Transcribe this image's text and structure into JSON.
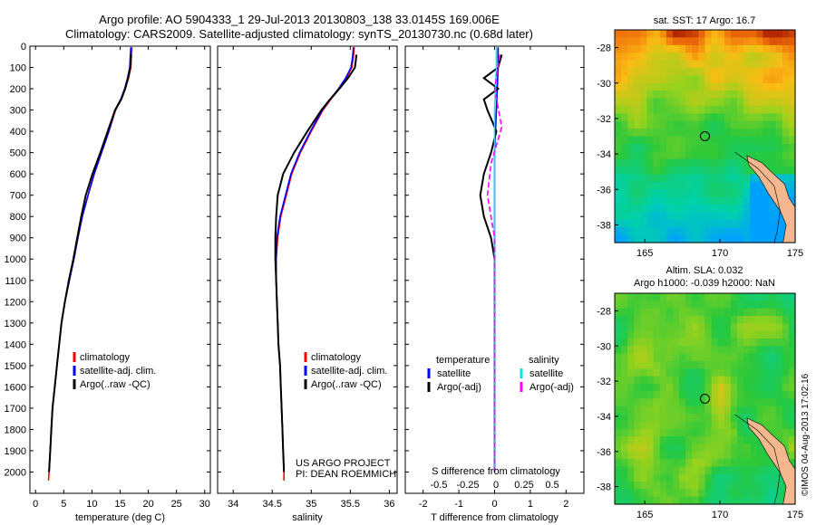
{
  "header": {
    "line1": "Argo profile: AO 5904333_1 29-Jul-2013 20130803_138 33.0145S 169.006E",
    "line2": "Climatology: CARS2009. Satellite-adjusted climatology: synTS_20130730.nc (0.68d later)"
  },
  "colors": {
    "climatology": "#ff0000",
    "satellite": "#0000ff",
    "argo": "#000000",
    "sat_salinity": "#00e5ee",
    "argo_salinity": "#ff00ff"
  },
  "chart_data": [
    {
      "type": "line",
      "id": "temperature",
      "xlabel": "temperature (deg C)",
      "ylim": [
        2100,
        0
      ],
      "xlim": [
        -1,
        31
      ],
      "xticks": [
        0,
        5,
        10,
        15,
        20,
        25,
        30
      ],
      "yticks": [
        0,
        100,
        200,
        300,
        400,
        500,
        600,
        700,
        800,
        900,
        1000,
        1100,
        1200,
        1300,
        1400,
        1500,
        1600,
        1700,
        1800,
        1900,
        2000
      ],
      "legend": [
        "climatology",
        "satellite-adj. clim.",
        "Argo(..raw -QC)"
      ],
      "series": [
        {
          "name": "climatology",
          "color": "#ff0000",
          "points": [
            [
              17.1,
              5
            ],
            [
              17.0,
              50
            ],
            [
              16.9,
              100
            ],
            [
              16.5,
              150
            ],
            [
              15.9,
              200
            ],
            [
              15.2,
              250
            ],
            [
              14.2,
              300
            ],
            [
              13.0,
              400
            ],
            [
              11.7,
              500
            ],
            [
              10.4,
              600
            ],
            [
              9.3,
              700
            ],
            [
              8.3,
              800
            ],
            [
              7.5,
              900
            ],
            [
              6.8,
              1000
            ],
            [
              6.0,
              1100
            ],
            [
              5.2,
              1200
            ],
            [
              4.6,
              1300
            ],
            [
              4.2,
              1400
            ],
            [
              3.8,
              1500
            ],
            [
              3.4,
              1600
            ],
            [
              3.0,
              1700
            ],
            [
              2.8,
              1800
            ],
            [
              2.6,
              1900
            ],
            [
              2.4,
              2000
            ],
            [
              2.3,
              2040
            ]
          ]
        },
        {
          "name": "satellite-adj. clim.",
          "color": "#0000ff",
          "points": [
            [
              16.9,
              5
            ],
            [
              16.8,
              50
            ],
            [
              16.7,
              100
            ],
            [
              16.3,
              150
            ],
            [
              15.8,
              200
            ],
            [
              15.1,
              250
            ],
            [
              14.1,
              300
            ],
            [
              13.0,
              400
            ],
            [
              11.7,
              500
            ],
            [
              10.4,
              600
            ],
            [
              9.3,
              700
            ],
            [
              8.3,
              800
            ],
            [
              7.5,
              900
            ],
            [
              6.8,
              1000
            ],
            [
              6.0,
              1100
            ],
            [
              5.2,
              1200
            ],
            [
              4.6,
              1300
            ],
            [
              4.2,
              1400
            ],
            [
              3.8,
              1500
            ],
            [
              3.4,
              1600
            ],
            [
              3.0,
              1700
            ],
            [
              2.8,
              1800
            ],
            [
              2.6,
              1900
            ],
            [
              2.4,
              2000
            ]
          ]
        },
        {
          "name": "Argo(..raw -QC)",
          "color": "#000000",
          "points": [
            [
              16.9,
              40
            ],
            [
              16.8,
              100
            ],
            [
              16.4,
              150
            ],
            [
              15.9,
              200
            ],
            [
              15.2,
              250
            ],
            [
              14.1,
              300
            ],
            [
              12.8,
              400
            ],
            [
              11.5,
              500
            ],
            [
              10.1,
              600
            ],
            [
              8.9,
              700
            ],
            [
              8.1,
              800
            ],
            [
              7.4,
              900
            ],
            [
              6.7,
              1000
            ],
            [
              5.9,
              1100
            ],
            [
              5.2,
              1200
            ],
            [
              4.6,
              1300
            ],
            [
              4.2,
              1400
            ],
            [
              3.8,
              1500
            ],
            [
              3.4,
              1600
            ],
            [
              3.0,
              1700
            ],
            [
              2.8,
              1800
            ],
            [
              2.6,
              1900
            ],
            [
              2.4,
              2000
            ]
          ]
        }
      ]
    },
    {
      "type": "line",
      "id": "salinity",
      "xlabel": "salinity",
      "ylim": [
        2100,
        0
      ],
      "xlim": [
        33.8,
        36.1
      ],
      "xticks": [
        34,
        34.5,
        35,
        35.5,
        36
      ],
      "legend": [
        "climatology",
        "satellite-adj. clim.",
        "Argo(..raw -QC)"
      ],
      "credit": [
        "US ARGO PROJECT",
        "PI: DEAN ROEMMICH"
      ],
      "series": [
        {
          "name": "climatology",
          "color": "#ff0000",
          "points": [
            [
              35.55,
              5
            ],
            [
              35.54,
              50
            ],
            [
              35.52,
              100
            ],
            [
              35.45,
              150
            ],
            [
              35.36,
              200
            ],
            [
              35.25,
              250
            ],
            [
              35.15,
              300
            ],
            [
              35.0,
              400
            ],
            [
              34.86,
              500
            ],
            [
              34.75,
              600
            ],
            [
              34.68,
              700
            ],
            [
              34.61,
              800
            ],
            [
              34.57,
              900
            ],
            [
              34.55,
              1000
            ],
            [
              34.55,
              1100
            ],
            [
              34.56,
              1200
            ],
            [
              34.57,
              1300
            ],
            [
              34.58,
              1400
            ],
            [
              34.6,
              1500
            ],
            [
              34.61,
              1600
            ],
            [
              34.62,
              1700
            ],
            [
              34.63,
              1800
            ],
            [
              34.64,
              1900
            ],
            [
              34.65,
              2000
            ],
            [
              34.65,
              2040
            ]
          ]
        },
        {
          "name": "satellite-adj. clim.",
          "color": "#0000ff",
          "points": [
            [
              35.54,
              5
            ],
            [
              35.53,
              50
            ],
            [
              35.51,
              100
            ],
            [
              35.44,
              150
            ],
            [
              35.35,
              200
            ],
            [
              35.24,
              250
            ],
            [
              35.14,
              300
            ],
            [
              34.99,
              400
            ],
            [
              34.85,
              500
            ],
            [
              34.74,
              600
            ],
            [
              34.67,
              700
            ],
            [
              34.6,
              800
            ],
            [
              34.56,
              900
            ],
            [
              34.55,
              1000
            ],
            [
              34.55,
              1100
            ],
            [
              34.56,
              1200
            ],
            [
              34.57,
              1300
            ],
            [
              34.58,
              1400
            ],
            [
              34.6,
              1500
            ],
            [
              34.61,
              1600
            ],
            [
              34.62,
              1700
            ],
            [
              34.63,
              1800
            ],
            [
              34.64,
              1900
            ],
            [
              34.65,
              2000
            ]
          ]
        },
        {
          "name": "Argo(..raw -QC)",
          "color": "#000000",
          "points": [
            [
              35.58,
              40
            ],
            [
              35.56,
              100
            ],
            [
              35.47,
              150
            ],
            [
              35.36,
              200
            ],
            [
              35.24,
              250
            ],
            [
              35.13,
              300
            ],
            [
              34.95,
              400
            ],
            [
              34.78,
              500
            ],
            [
              34.64,
              600
            ],
            [
              34.57,
              700
            ],
            [
              34.55,
              800
            ],
            [
              34.54,
              900
            ],
            [
              34.54,
              1000
            ],
            [
              34.55,
              1100
            ],
            [
              34.56,
              1200
            ],
            [
              34.57,
              1300
            ],
            [
              34.58,
              1400
            ],
            [
              34.6,
              1500
            ],
            [
              34.61,
              1600
            ],
            [
              34.62,
              1700
            ],
            [
              34.63,
              1800
            ],
            [
              34.64,
              1900
            ],
            [
              34.65,
              2000
            ]
          ]
        }
      ]
    },
    {
      "type": "line",
      "id": "difference",
      "xlabel": "T difference from climatology",
      "s_label": "S difference from climatology",
      "ylim": [
        2100,
        0
      ],
      "xlim": [
        -2.5,
        2.5
      ],
      "xticks": [
        -2,
        -1,
        0,
        1,
        2
      ],
      "xtick_labels": [
        "-2",
        "-1",
        "0",
        "1",
        "2"
      ],
      "s_ticks": [
        "-0.5",
        "-0.25",
        "0",
        "0.25",
        "0.5"
      ],
      "legend_headers": [
        "temperature",
        "salinity"
      ],
      "legend": [
        "satellite",
        "Argo(-adj)",
        "satellite",
        "Argo(-adj)"
      ],
      "series": [
        {
          "name": "satellite",
          "color": "#0000ff",
          "points": [
            [
              0.1,
              5
            ],
            [
              0.1,
              100
            ],
            [
              0.05,
              300
            ],
            [
              0,
              500
            ],
            [
              0,
              1000
            ],
            [
              0,
              1500
            ],
            [
              0,
              2000
            ]
          ]
        },
        {
          "name": "Argo(-adj)",
          "color": "#000000",
          "points": [
            [
              0.2,
              40
            ],
            [
              0.1,
              100
            ],
            [
              -0.3,
              150
            ],
            [
              0.1,
              200
            ],
            [
              -0.3,
              250
            ],
            [
              -0.2,
              300
            ],
            [
              0.05,
              400
            ],
            [
              -0.1,
              500
            ],
            [
              -0.3,
              600
            ],
            [
              -0.4,
              700
            ],
            [
              -0.3,
              800
            ],
            [
              -0.1,
              900
            ],
            [
              0,
              1000
            ],
            [
              0,
              1500
            ],
            [
              0,
              2000
            ]
          ]
        },
        {
          "name": "satellite",
          "color": "#00e5ee",
          "points": [
            [
              0.05,
              5
            ],
            [
              0.05,
              100
            ],
            [
              0,
              300
            ],
            [
              0,
              1000
            ],
            [
              0,
              2000
            ]
          ]
        },
        {
          "name": "Argo(-adj)",
          "color": "#ff00ff",
          "points": [
            [
              0.15,
              40
            ],
            [
              0,
              200
            ],
            [
              0.2,
              380
            ],
            [
              -0.1,
              550
            ],
            [
              -0.2,
              700
            ],
            [
              0,
              900
            ],
            [
              0,
              1200
            ],
            [
              0,
              2000
            ]
          ]
        }
      ]
    },
    {
      "type": "heatmap",
      "id": "sst_map",
      "title": "sat. SST: 17 Argo: 16.7",
      "xlim": [
        163,
        175
      ],
      "ylim": [
        -39,
        -27
      ],
      "xticks": [
        165,
        170,
        175
      ],
      "yticks": [
        -28,
        -30,
        -32,
        -34,
        -36,
        -38
      ],
      "marker": [
        169.0,
        -33.0
      ]
    },
    {
      "type": "heatmap",
      "id": "sla_map",
      "title_line1": "Altim. SLA: 0.032",
      "title_line2": "Argo h1000: -0.039 h2000: NaN",
      "xlim": [
        163,
        175
      ],
      "ylim": [
        -39,
        -27
      ],
      "xticks": [
        165,
        170,
        175
      ],
      "yticks": [
        -28,
        -30,
        -32,
        -34,
        -36,
        -38
      ],
      "marker": [
        169.0,
        -33.0
      ]
    }
  ],
  "timestamp": "©IMOS 04-Aug-2013 17:02:16"
}
